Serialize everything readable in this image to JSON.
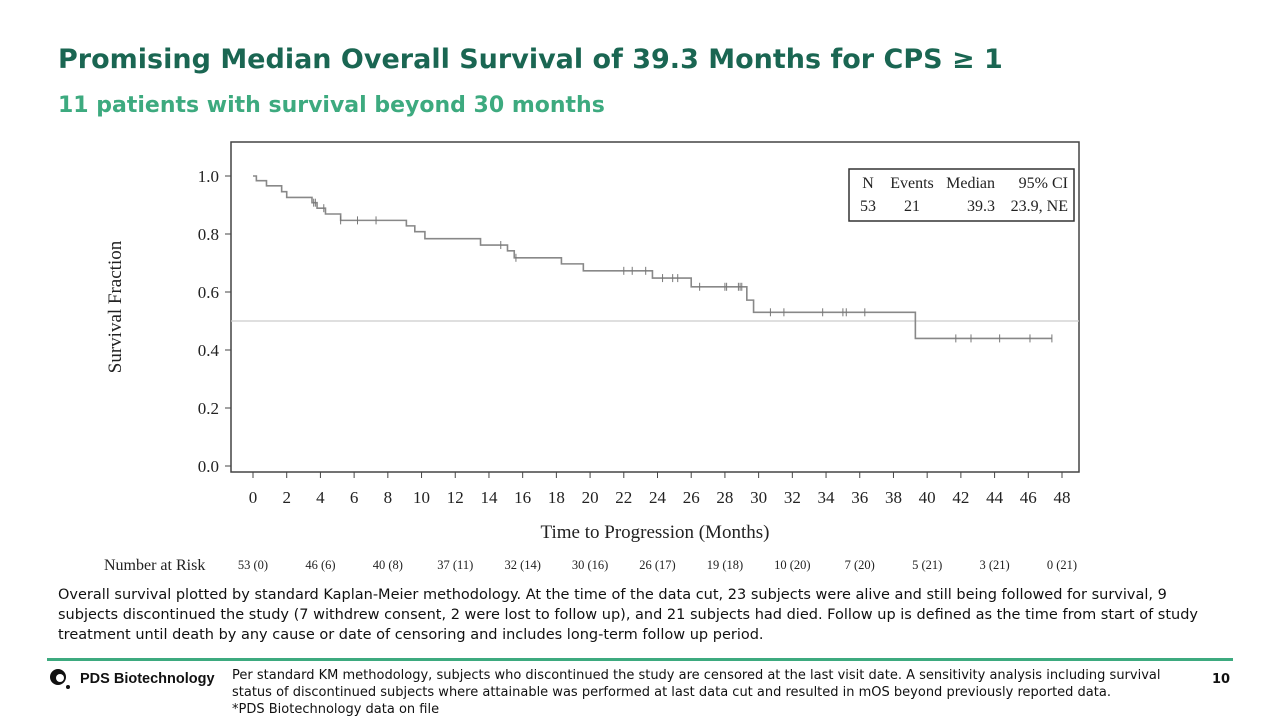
{
  "header": {
    "title": "Promising Median Overall Survival of 39.3 Months for CPS ≥ 1",
    "subtitle": "11 patients with survival beyond 30 months"
  },
  "colors": {
    "title": "#1a6652",
    "subtitle": "#3daa7f",
    "curve": "#888888",
    "rule": "#3daa7f"
  },
  "chart_data": {
    "type": "line",
    "subtype": "kaplan-meier step",
    "xlabel": "Time to Progression (Months)",
    "ylabel": "Survival Fraction",
    "xlim": [
      0,
      48
    ],
    "ylim": [
      0,
      1.0
    ],
    "xticks": [
      0,
      2,
      4,
      6,
      8,
      10,
      12,
      14,
      16,
      18,
      20,
      22,
      24,
      26,
      28,
      30,
      32,
      34,
      36,
      38,
      40,
      42,
      44,
      46,
      48
    ],
    "yticks": [
      "0.0",
      "0.2",
      "0.4",
      "0.6",
      "0.8",
      "1.0"
    ],
    "reference_line_y": 0.5,
    "grid": false,
    "steps": [
      [
        0,
        1.0
      ],
      [
        0.2,
        0.984
      ],
      [
        0.8,
        0.966
      ],
      [
        1.7,
        0.946
      ],
      [
        2.0,
        0.926
      ],
      [
        3.5,
        0.908
      ],
      [
        3.8,
        0.889
      ],
      [
        4.3,
        0.869
      ],
      [
        5.2,
        0.847
      ],
      [
        9.1,
        0.828
      ],
      [
        9.6,
        0.808
      ],
      [
        10.2,
        0.784
      ],
      [
        13.5,
        0.762
      ],
      [
        15.1,
        0.742
      ],
      [
        15.5,
        0.718
      ],
      [
        18.3,
        0.697
      ],
      [
        19.6,
        0.673
      ],
      [
        23.7,
        0.648
      ],
      [
        26.0,
        0.618
      ],
      [
        29.3,
        0.572
      ],
      [
        29.7,
        0.53
      ],
      [
        39.3,
        0.44
      ],
      [
        47.4,
        0.44
      ]
    ],
    "censored_times": [
      3.6,
      3.7,
      4.2,
      5.2,
      6.2,
      7.3,
      14.7,
      15.6,
      22.0,
      22.5,
      23.3,
      24.3,
      24.9,
      25.2,
      26.5,
      28.0,
      28.1,
      28.8,
      28.9,
      29.0,
      30.7,
      31.5,
      33.8,
      35.0,
      35.2,
      36.3,
      41.7,
      42.6,
      44.3,
      46.1,
      47.4
    ],
    "legend": {
      "placement": "top-right",
      "headers": [
        "N",
        "Events",
        "Median",
        "95% CI"
      ],
      "values": [
        "53",
        "21",
        "39.3",
        "23.9, NE"
      ]
    },
    "number_at_risk": {
      "label": "Number at Risk",
      "times": [
        0,
        4,
        8,
        12,
        16,
        20,
        24,
        28,
        32,
        36,
        40,
        44,
        48
      ],
      "values": [
        "53 (0)",
        "46 (6)",
        "40 (8)",
        "37 (11)",
        "32 (14)",
        "30 (16)",
        "26 (17)",
        "19 (18)",
        "10 (20)",
        "7 (20)",
        "5 (21)",
        "3 (21)",
        "0 (21)"
      ]
    }
  },
  "caption": "Overall survival plotted by standard Kaplan-Meier methodology. At the time of the data cut, 23 subjects were alive and still being followed for survival, 9 subjects discontinued the study (7 withdrew consent, 2 were lost to follow up), and 21 subjects had died. Follow up is defined as the time from start of study treatment until death by any cause or date of censoring and includes long-term follow up period.",
  "footer": {
    "logo": "PDS Biotechnology",
    "note_1": "Per standard KM methodology, subjects who discontinued the study are censored at the last visit date. A sensitivity analysis including survival status of discontinued subjects where attainable was performed at last data cut and resulted in mOS beyond previously reported data.",
    "note_2": "*PDS Biotechnology data on file",
    "page_number": "10"
  }
}
